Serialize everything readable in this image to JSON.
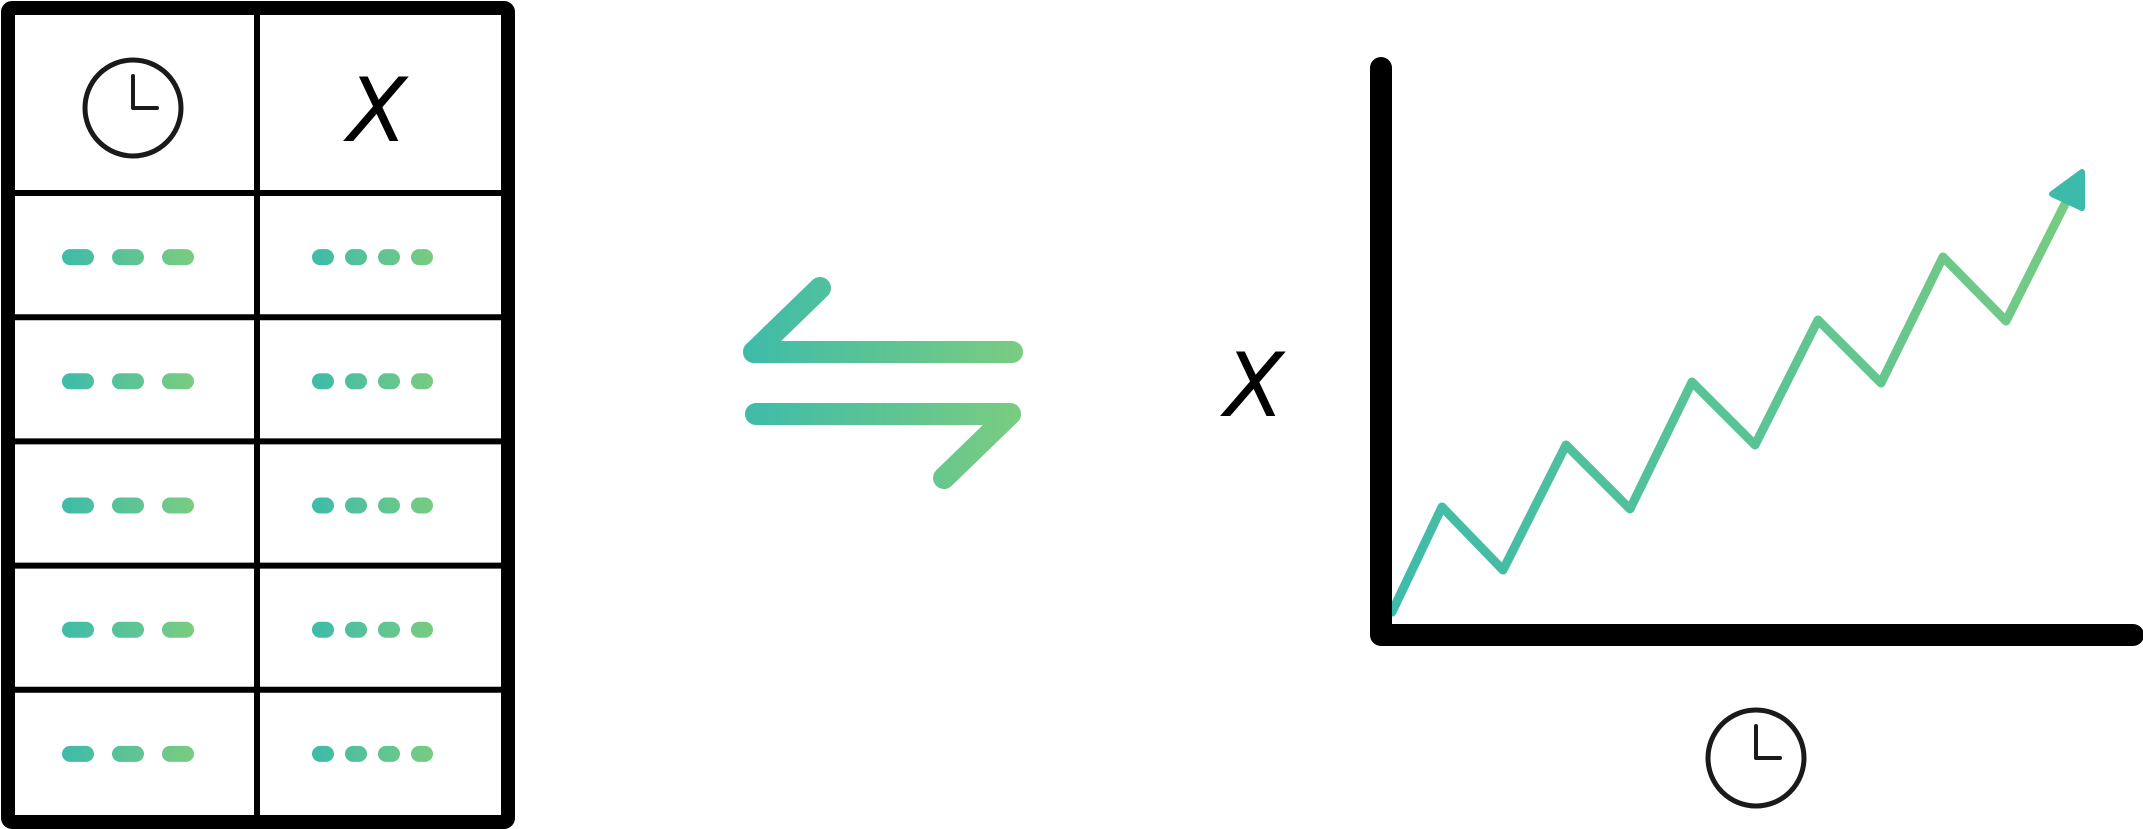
{
  "table": {
    "header_time_icon": "clock-icon",
    "header_value_label": "X",
    "row_count": 5,
    "time_dash_count": 3,
    "value_dash_count": 4
  },
  "arrows": {
    "icon": "bidirectional-arrows-icon"
  },
  "chart": {
    "y_axis_label": "X",
    "x_axis_icon": "clock-icon",
    "trend_icon": "upward-trend-arrow"
  },
  "colors": {
    "ink": "#000000",
    "gradient_start": "#3dbbaa",
    "gradient_end": "#7acc80"
  }
}
